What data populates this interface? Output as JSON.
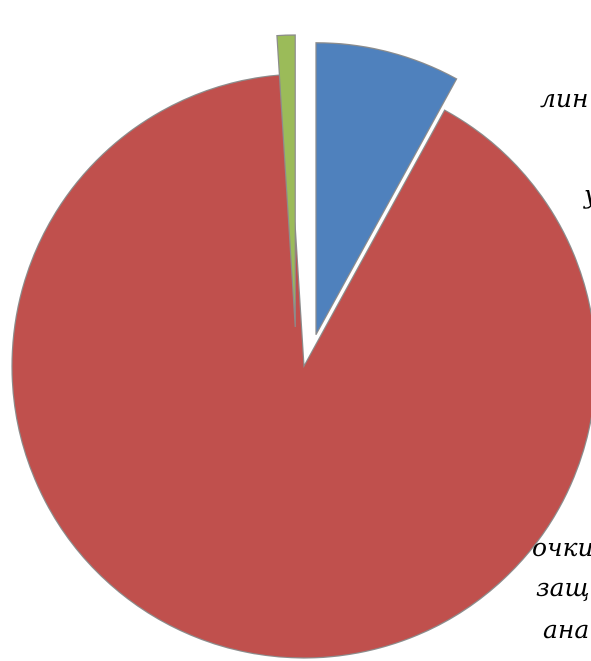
{
  "chart_data": {
    "type": "pie",
    "exploded": true,
    "slices": [
      {
        "value": 8.0,
        "color": "#4F81BD"
      },
      {
        "value": 91.0,
        "color": "#C0504D"
      },
      {
        "value": 1.0,
        "color": "#9BBB59"
      }
    ],
    "labels": [
      "лин",
      "",
      "у",
      "очки",
      "защ",
      "ана"
    ]
  }
}
